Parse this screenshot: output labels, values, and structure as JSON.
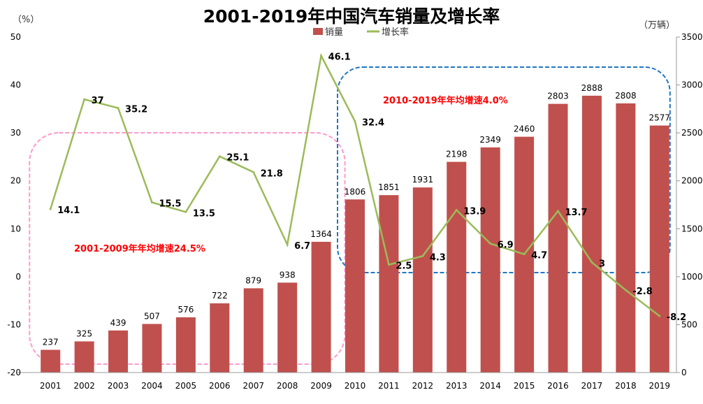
{
  "chart_data": {
    "type": "bar+line",
    "title": "2001-2019年中国汽车销量及增长率",
    "left_axis_unit": "（%）",
    "right_axis_unit": "（万辆）",
    "categories": [
      "2001",
      "2002",
      "2003",
      "2004",
      "2005",
      "2006",
      "2007",
      "2008",
      "2009",
      "2010",
      "2011",
      "2012",
      "2013",
      "2014",
      "2015",
      "2016",
      "2017",
      "2018",
      "2019"
    ],
    "series": [
      {
        "name": "销量",
        "type": "bar",
        "axis": "right",
        "color": "#c0504d",
        "values": [
          237,
          325,
          439,
          507,
          576,
          722,
          879,
          938,
          1364,
          1806,
          1851,
          1931,
          2198,
          2349,
          2460,
          2803,
          2888,
          2808,
          2577
        ]
      },
      {
        "name": "增长率",
        "type": "line",
        "axis": "left",
        "color": "#9bbb59",
        "values": [
          14.1,
          37,
          35.2,
          15.5,
          13.5,
          25.1,
          21.8,
          6.7,
          46.1,
          32.4,
          2.5,
          4.3,
          13.9,
          6.9,
          4.7,
          13.7,
          3,
          -2.8,
          -8.2
        ]
      }
    ],
    "left_ylim": [
      -20,
      50
    ],
    "left_ticks": [
      "-20",
      "-10",
      "0",
      "10",
      "20",
      "30",
      "40",
      "50"
    ],
    "right_ylim": [
      0,
      3500
    ],
    "right_ticks": [
      "0",
      "500",
      "1000",
      "1500",
      "2000",
      "2500",
      "3000",
      "3500"
    ],
    "legend_position": "top",
    "grid": false,
    "annotations": [
      {
        "text": "2001-2009年年均增速24.5%",
        "color": "#ff0000",
        "box_color": "#ff99cc",
        "range": [
          "2001",
          "2009"
        ]
      },
      {
        "text": "2010-2019年年均增速4.0%",
        "color": "#ff0000",
        "box_color": "#1f77c4",
        "range": [
          "2010",
          "2019"
        ]
      }
    ]
  }
}
